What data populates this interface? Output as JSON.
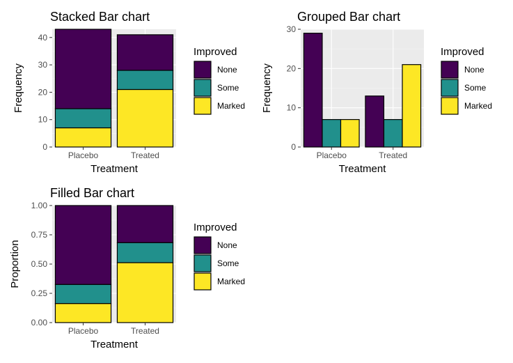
{
  "colors": {
    "None": "#440154",
    "Some": "#21908C",
    "Marked": "#FDE725",
    "panel_bg": "#EBEBEB",
    "grid_major": "#FFFFFF",
    "grid_minor": "#F5F5F5",
    "bar_outline": "#000000",
    "tick_text": "#4D4D4D"
  },
  "chart_data": [
    {
      "id": "stacked",
      "type": "bar",
      "mode": "stacked",
      "title": "Stacked Bar chart",
      "xlabel": "Treatment",
      "ylabel": "Frequency",
      "categories": [
        "Placebo",
        "Treated"
      ],
      "series": [
        {
          "name": "None",
          "values": [
            29,
            13
          ]
        },
        {
          "name": "Some",
          "values": [
            7,
            7
          ]
        },
        {
          "name": "Marked",
          "values": [
            7,
            21
          ]
        }
      ],
      "ylim": [
        0,
        43
      ],
      "yticks": [
        0,
        10,
        20,
        30,
        40
      ],
      "ytick_labels": [
        "0",
        "10",
        "20",
        "30",
        "40"
      ],
      "grid": true,
      "legend": {
        "title": "Improved",
        "placement": "right",
        "entries": [
          "None",
          "Some",
          "Marked"
        ]
      }
    },
    {
      "id": "grouped",
      "type": "bar",
      "mode": "grouped",
      "title": "Grouped Bar chart",
      "xlabel": "Treatment",
      "ylabel": "Frequency",
      "categories": [
        "Placebo",
        "Treated"
      ],
      "series": [
        {
          "name": "None",
          "values": [
            29,
            13
          ]
        },
        {
          "name": "Some",
          "values": [
            7,
            7
          ]
        },
        {
          "name": "Marked",
          "values": [
            7,
            21
          ]
        }
      ],
      "ylim": [
        0,
        30
      ],
      "yticks": [
        0,
        10,
        20,
        30
      ],
      "ytick_labels": [
        "0",
        "10",
        "20",
        "30"
      ],
      "grid": true,
      "legend": {
        "title": "Improved",
        "placement": "right",
        "entries": [
          "None",
          "Some",
          "Marked"
        ]
      }
    },
    {
      "id": "filled",
      "type": "bar",
      "mode": "filled",
      "title": "Filled Bar chart",
      "xlabel": "Treatment",
      "ylabel": "Proportion",
      "categories": [
        "Placebo",
        "Treated"
      ],
      "series": [
        {
          "name": "None",
          "values": [
            0.674,
            0.317
          ]
        },
        {
          "name": "Some",
          "values": [
            0.163,
            0.171
          ]
        },
        {
          "name": "Marked",
          "values": [
            0.163,
            0.512
          ]
        }
      ],
      "ylim": [
        0,
        1
      ],
      "yticks": [
        0,
        0.25,
        0.5,
        0.75,
        1.0
      ],
      "ytick_labels": [
        "0.00",
        "0.25",
        "0.50",
        "0.75",
        "1.00"
      ],
      "grid": true,
      "legend": {
        "title": "Improved",
        "placement": "right",
        "entries": [
          "None",
          "Some",
          "Marked"
        ]
      }
    }
  ]
}
